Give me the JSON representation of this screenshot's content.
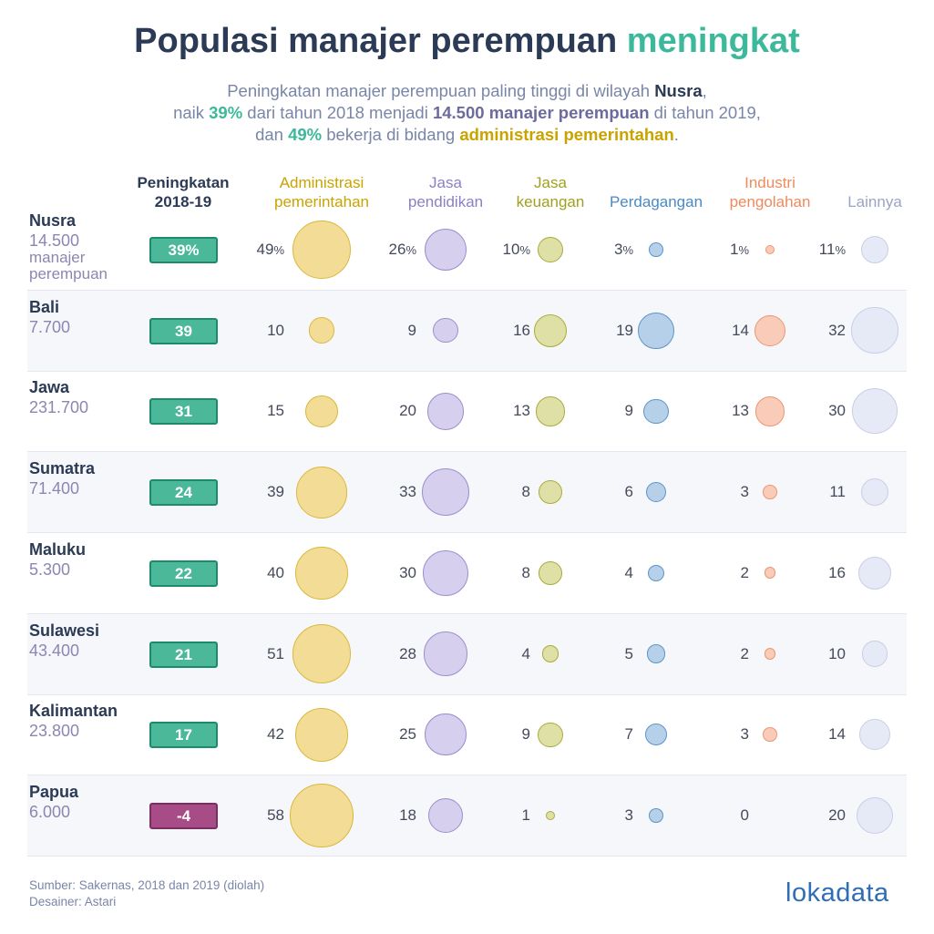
{
  "title": {
    "main": "Populasi manajer perempuan ",
    "highlight": "meningkat"
  },
  "subtitle": {
    "line1": [
      "Peningkatan manajer perempuan paling tinggi di wilayah ",
      "Nusra",
      ","
    ],
    "line2": [
      "naik ",
      "39%",
      " dari tahun 2018 menjadi ",
      "14.500 manajer perempuan",
      " di tahun 2019,"
    ],
    "line3": [
      "dan ",
      "49%",
      " bekerja di bidang ",
      "administrasi pemerintahan",
      "."
    ]
  },
  "chart_data": {
    "type": "table",
    "title": "Populasi manajer perempuan meningkat",
    "columns": [
      {
        "key": "inc",
        "label": [
          "Peningkatan",
          "2018-19"
        ],
        "color": "#2b3a55"
      },
      {
        "key": "adm",
        "label": [
          "Administrasi",
          "pemerintahan"
        ],
        "color": "#c9a300",
        "fill": "#f2dc96",
        "stroke": "#d9b93d"
      },
      {
        "key": "pend",
        "label": [
          "Jasa",
          "pendidikan"
        ],
        "color": "#8b80c4",
        "fill": "#d6cfee",
        "stroke": "#9a8fce"
      },
      {
        "key": "keu",
        "label": [
          "Jasa",
          "keuangan"
        ],
        "color": "#a0a020",
        "fill": "#dfe0a6",
        "stroke": "#a9ab3b"
      },
      {
        "key": "dag",
        "label": [
          "Perdagangan"
        ],
        "color": "#4a8ac4",
        "fill": "#b6d0ea",
        "stroke": "#5b95c9"
      },
      {
        "key": "ind",
        "label": [
          "Industri",
          "pengolahan"
        ],
        "color": "#f08a5d",
        "fill": "#f8ccb8",
        "stroke": "#ee9570"
      },
      {
        "key": "lain",
        "label": [
          "Lainnya"
        ],
        "color": "#9aa5c4",
        "fill": "#e6eaf6",
        "stroke": "#c7cfe6"
      }
    ],
    "rows": [
      {
        "region": "Nusra",
        "population": "14.500",
        "population_note": [
          "manajer",
          "perempuan"
        ],
        "increase": "39%",
        "values": [
          49,
          26,
          10,
          3,
          1,
          11
        ]
      },
      {
        "region": "Bali",
        "population": "7.700",
        "increase": "39",
        "values": [
          10,
          9,
          16,
          19,
          14,
          32
        ]
      },
      {
        "region": "Jawa",
        "population": "231.700",
        "increase": "31",
        "values": [
          15,
          20,
          13,
          9,
          13,
          30
        ]
      },
      {
        "region": "Sumatra",
        "population": "71.400",
        "increase": "24",
        "values": [
          39,
          33,
          8,
          6,
          3,
          11
        ]
      },
      {
        "region": "Maluku",
        "population": "5.300",
        "increase": "22",
        "values": [
          40,
          30,
          8,
          4,
          2,
          16
        ]
      },
      {
        "region": "Sulawesi",
        "population": "43.400",
        "increase": "21",
        "values": [
          51,
          28,
          4,
          5,
          2,
          10
        ]
      },
      {
        "region": "Kalimantan",
        "population": "23.800",
        "increase": "17",
        "values": [
          42,
          25,
          9,
          7,
          3,
          14
        ]
      },
      {
        "region": "Papua",
        "population": "6.000",
        "increase": "-4",
        "values": [
          58,
          18,
          1,
          3,
          0,
          20
        ]
      }
    ],
    "first_row_percent_sign": "%"
  },
  "footer": {
    "source": "Sumber: Sakernas, 2018 dan 2019 (diolah)",
    "designer": "Desainer: Astari"
  },
  "logo": {
    "text": "lokadata",
    "color": "#2f6db5"
  }
}
